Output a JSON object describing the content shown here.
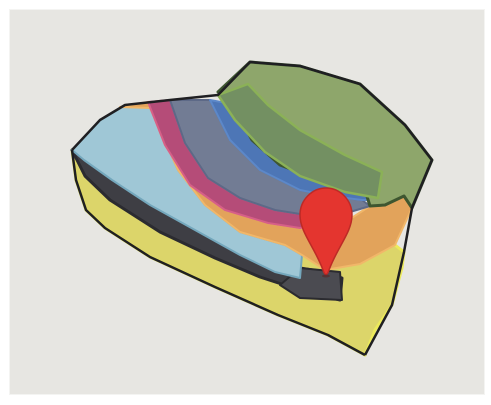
{
  "map": {
    "layers": [
      {
        "name": "outer-yellow-zone",
        "fill": "#dcd56a",
        "stroke": "#e8e24f"
      },
      {
        "name": "dark-gray-band",
        "fill": "#3e3e44"
      },
      {
        "name": "light-blue-zone",
        "fill": "#9fc7d6",
        "stroke": "#6fa8bf"
      },
      {
        "name": "orange-zone",
        "fill": "#e2a35b",
        "stroke": "#f0b063"
      },
      {
        "name": "magenta-zone",
        "fill": "#b54c78",
        "stroke": "#d0567f"
      },
      {
        "name": "slate-zone",
        "fill": "#727c94",
        "stroke": "#5e6a88"
      },
      {
        "name": "blue-stripe",
        "fill": "#4d76b6",
        "stroke": "#5b86c7"
      },
      {
        "name": "olive-zone",
        "fill": "#8ea66b",
        "stroke": "#6e8f45"
      },
      {
        "name": "inner-olive-zone",
        "fill": "#739062",
        "stroke": "#8bb157"
      }
    ],
    "pin": {
      "icon": "map-pin-icon",
      "color": "#e4352f"
    },
    "background": "#e7e6e2"
  }
}
